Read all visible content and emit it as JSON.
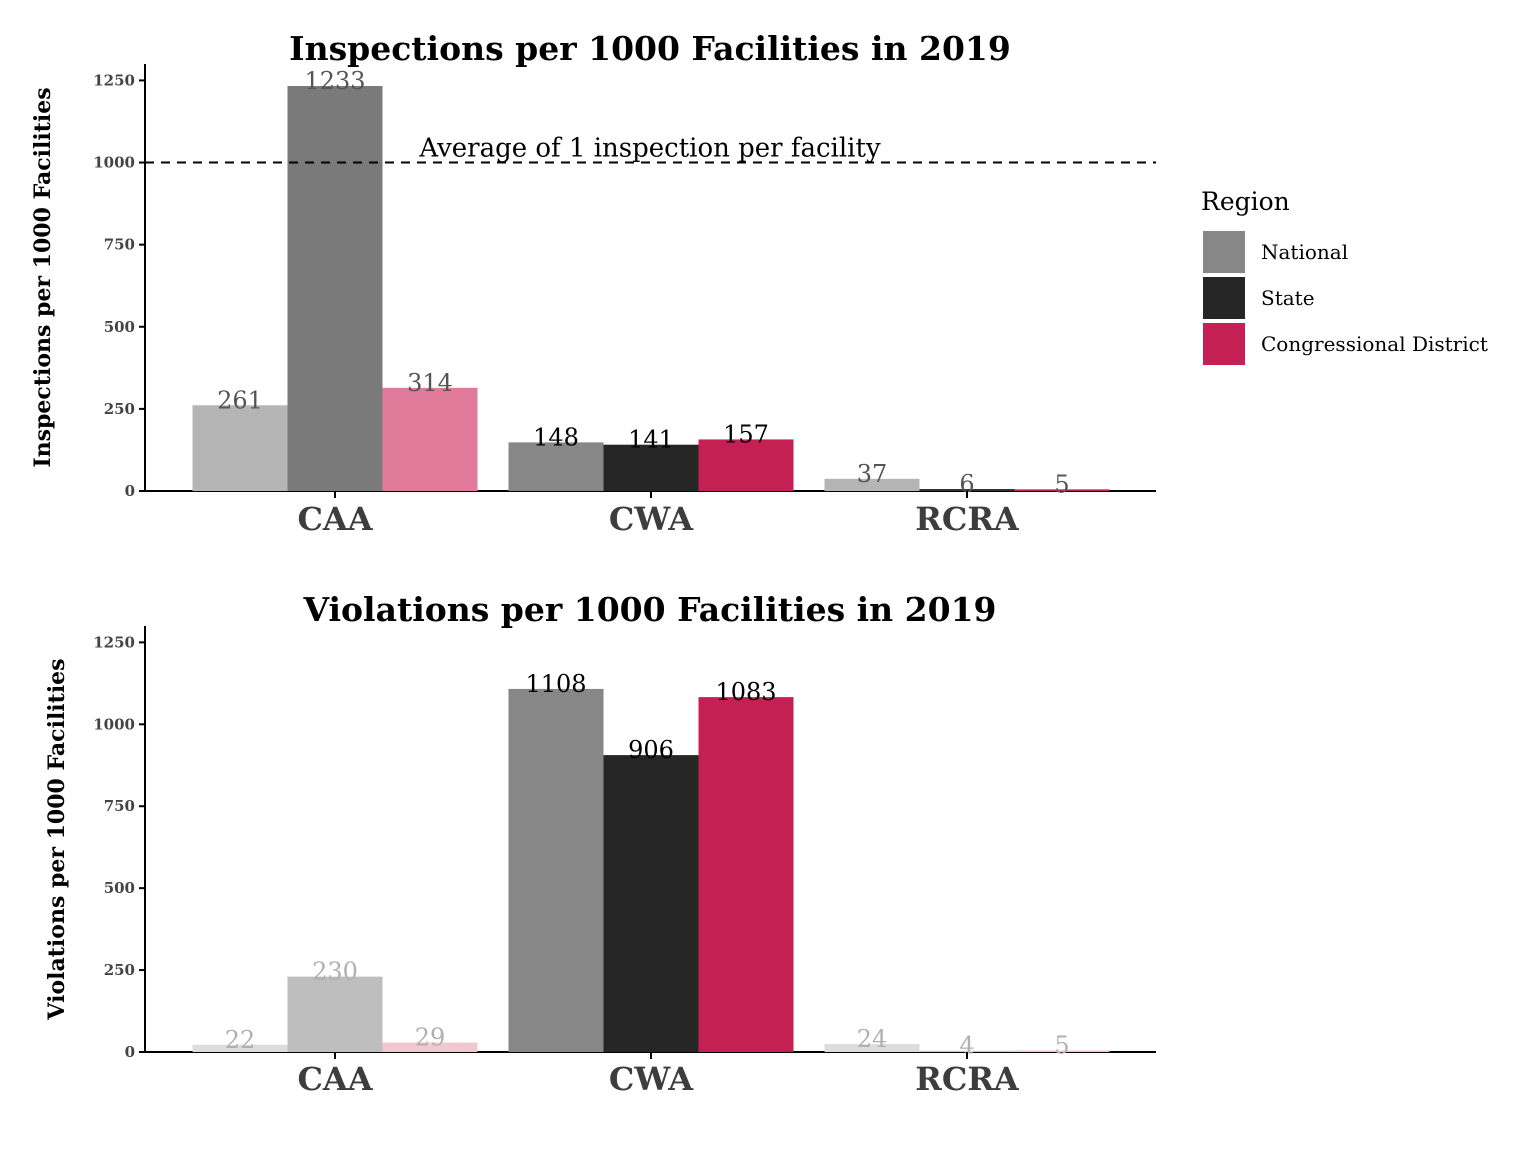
{
  "legend": {
    "title": "Region",
    "items": [
      {
        "label": "National",
        "color": "#878787"
      },
      {
        "label": "State",
        "color": "#262626"
      },
      {
        "label": "Congressional District",
        "color": "#c42054"
      }
    ]
  },
  "chart_data": [
    {
      "type": "bar",
      "title": "Inspections per 1000 Facilities in 2019",
      "ylabel": "Inspections per 1000 Facilities",
      "xlabel": "",
      "ylim": [
        0,
        1300
      ],
      "yticks": [
        0,
        250,
        500,
        750,
        1000,
        1250
      ],
      "categories": [
        "CAA",
        "CWA",
        "RCRA"
      ],
      "series": [
        {
          "name": "National",
          "values": [
            261,
            148,
            37
          ]
        },
        {
          "name": "State",
          "values": [
            1233,
            141,
            6
          ]
        },
        {
          "name": "Congressional District",
          "values": [
            314,
            157,
            5
          ]
        }
      ],
      "bar_colors": [
        [
          "#b5b5b5",
          "#7a7a7a",
          "#df7a9a"
        ],
        [
          "#878787",
          "#262626",
          "#c42054"
        ],
        [
          "#b5b5b5",
          "#303030",
          "#c42054"
        ]
      ],
      "label_colors": [
        [
          "#555555",
          "#555555",
          "#555555"
        ],
        [
          "#000000",
          "#000000",
          "#000000"
        ],
        [
          "#555555",
          "#555555",
          "#555555"
        ]
      ],
      "reference_line": {
        "value": 1000,
        "label": "Average of 1 inspection per facility"
      },
      "grid": false
    },
    {
      "type": "bar",
      "title": "Violations per 1000 Facilities in 2019",
      "ylabel": "Violations per 1000 Facilities",
      "xlabel": "",
      "ylim": [
        0,
        1300
      ],
      "yticks": [
        0,
        250,
        500,
        750,
        1000,
        1250
      ],
      "categories": [
        "CAA",
        "CWA",
        "RCRA"
      ],
      "series": [
        {
          "name": "National",
          "values": [
            22,
            1108,
            24
          ]
        },
        {
          "name": "State",
          "values": [
            230,
            906,
            4
          ]
        },
        {
          "name": "Congressional District",
          "values": [
            29,
            1083,
            5
          ]
        }
      ],
      "bar_colors": [
        [
          "#dcdcdc",
          "#bebebe",
          "#f0c8d4"
        ],
        [
          "#878787",
          "#262626",
          "#c42054"
        ],
        [
          "#dcdcdc",
          "#d0d0d0",
          "#f0c8d4"
        ]
      ],
      "label_colors": [
        [
          "#b0b0b0",
          "#b0b0b0",
          "#b0b0b0"
        ],
        [
          "#000000",
          "#000000",
          "#000000"
        ],
        [
          "#b0b0b0",
          "#b0b0b0",
          "#b0b0b0"
        ]
      ],
      "grid": false
    }
  ]
}
